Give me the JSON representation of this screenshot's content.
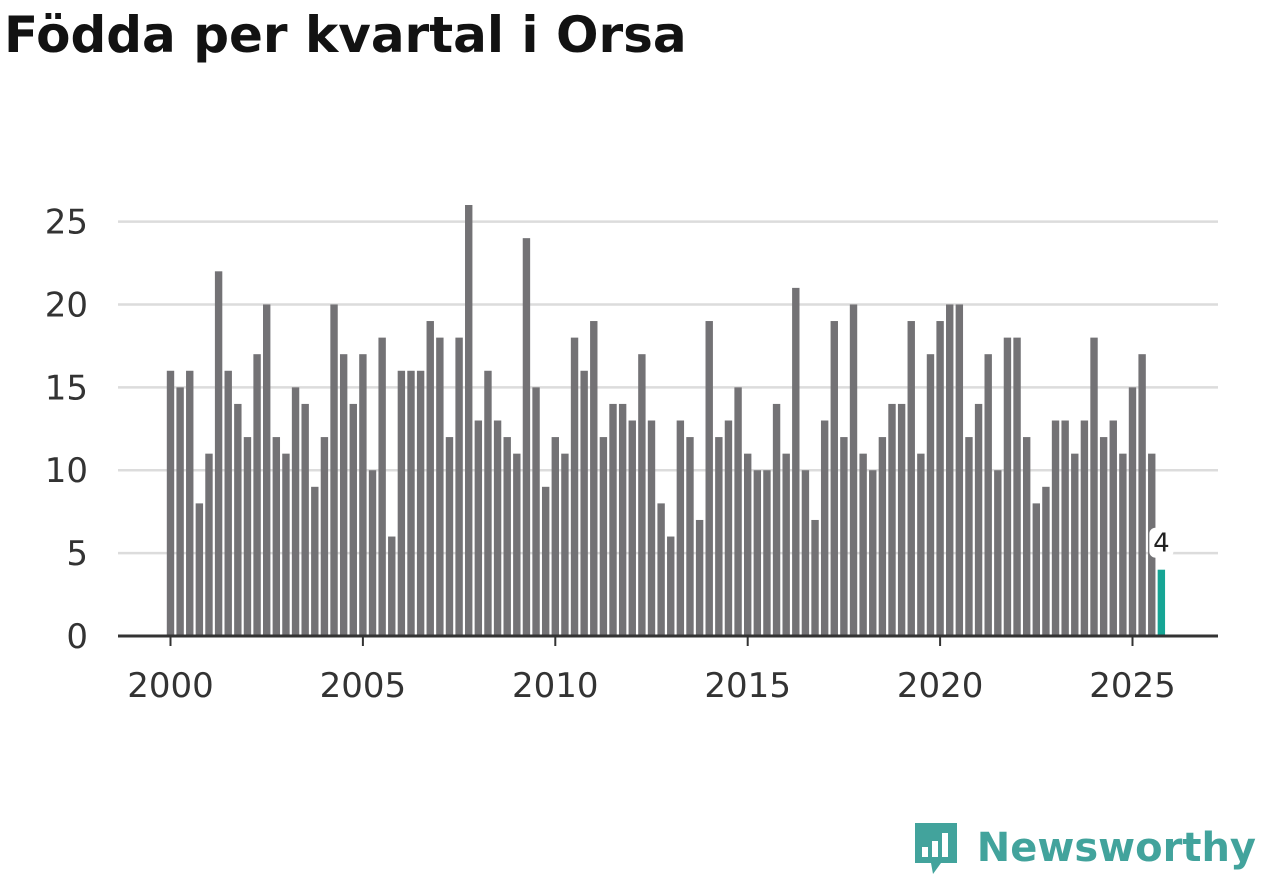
{
  "title": "Födda per kvartal i Orsa",
  "brand": "Newsworthy",
  "colors": {
    "bar": "#737275",
    "highlight": "#16a595",
    "grid": "#dcdcdc",
    "axis": "#333333",
    "brand": "#42a39c"
  },
  "chart_data": {
    "type": "bar",
    "title": "Födda per kvartal i Orsa",
    "xlabel": "",
    "ylabel": "",
    "ylim": [
      0,
      26
    ],
    "yticks": [
      0,
      5,
      10,
      15,
      20,
      25
    ],
    "xticks": [
      "2000",
      "2005",
      "2010",
      "2015",
      "2020",
      "2025"
    ],
    "first_period": "2000 Q1",
    "last_period": "2025 Q4",
    "highlight_label": "4",
    "values": [
      16,
      15,
      16,
      8,
      11,
      22,
      16,
      14,
      12,
      17,
      20,
      12,
      11,
      15,
      14,
      9,
      12,
      20,
      17,
      14,
      17,
      10,
      18,
      6,
      16,
      16,
      16,
      19,
      18,
      12,
      18,
      26,
      13,
      16,
      13,
      12,
      11,
      24,
      15,
      9,
      12,
      11,
      18,
      16,
      19,
      12,
      14,
      14,
      13,
      17,
      13,
      8,
      6,
      13,
      12,
      7,
      19,
      12,
      13,
      15,
      11,
      10,
      10,
      14,
      11,
      21,
      10,
      7,
      13,
      19,
      12,
      20,
      11,
      10,
      12,
      14,
      14,
      19,
      11,
      17,
      19,
      20,
      20,
      12,
      14,
      17,
      10,
      18,
      18,
      12,
      8,
      9,
      13,
      13,
      11,
      13,
      18,
      12,
      13,
      11,
      15,
      17,
      11,
      4
    ]
  }
}
